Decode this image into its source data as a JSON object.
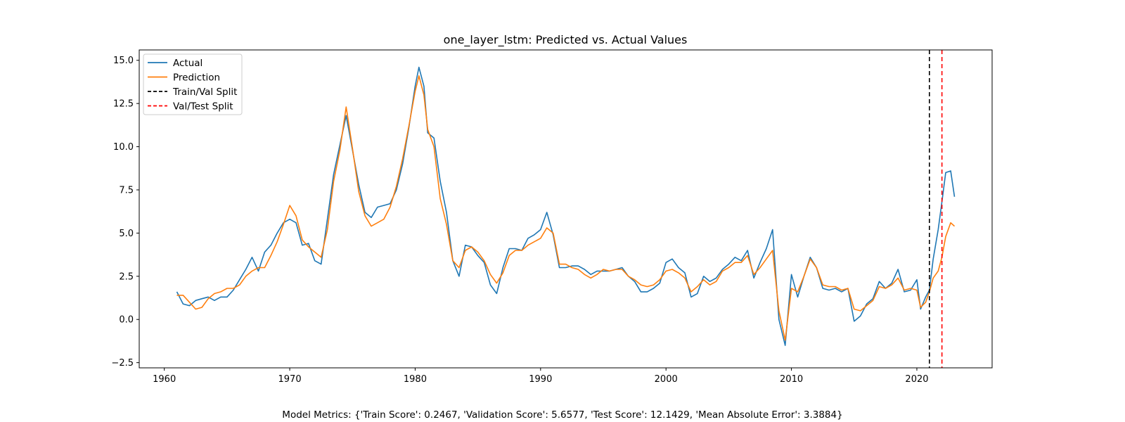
{
  "chart_data": {
    "type": "line",
    "title": "one_layer_lstm: Predicted vs. Actual Values",
    "xlabel": "",
    "ylabel": "",
    "xlim": [
      1958,
      2026
    ],
    "ylim": [
      -2.8,
      15.6
    ],
    "xticks": [
      1960,
      1970,
      1980,
      1990,
      2000,
      2010,
      2020
    ],
    "yticks": [
      -2.5,
      0.0,
      2.5,
      5.0,
      7.5,
      10.0,
      12.5,
      15.0
    ],
    "ytick_labels": [
      "−2.5",
      "0.0",
      "2.5",
      "5.0",
      "7.5",
      "10.0",
      "12.5",
      "15.0"
    ],
    "grid": false,
    "legend_position": "upper-left",
    "series": [
      {
        "name": "Actual",
        "color": "#1f77b4",
        "x": [
          1961.0,
          1961.5,
          1962.0,
          1962.5,
          1963.0,
          1963.5,
          1964.0,
          1964.5,
          1965.0,
          1965.5,
          1966.0,
          1966.5,
          1967.0,
          1967.5,
          1968.0,
          1968.5,
          1969.0,
          1969.5,
          1970.0,
          1970.5,
          1971.0,
          1971.5,
          1972.0,
          1972.5,
          1973.0,
          1973.5,
          1974.0,
          1974.5,
          1975.0,
          1975.5,
          1976.0,
          1976.5,
          1977.0,
          1977.5,
          1978.0,
          1978.5,
          1979.0,
          1979.5,
          1980.0,
          1980.3,
          1980.7,
          1981.0,
          1981.5,
          1982.0,
          1982.5,
          1983.0,
          1983.5,
          1984.0,
          1984.5,
          1985.0,
          1985.5,
          1986.0,
          1986.5,
          1987.0,
          1987.5,
          1988.0,
          1988.5,
          1989.0,
          1989.5,
          1990.0,
          1990.5,
          1991.0,
          1991.5,
          1992.0,
          1992.5,
          1993.0,
          1993.5,
          1994.0,
          1994.5,
          1995.0,
          1995.5,
          1996.0,
          1996.5,
          1997.0,
          1997.5,
          1998.0,
          1998.5,
          1999.0,
          1999.5,
          2000.0,
          2000.5,
          2001.0,
          2001.5,
          2002.0,
          2002.5,
          2003.0,
          2003.5,
          2004.0,
          2004.5,
          2005.0,
          2005.5,
          2006.0,
          2006.5,
          2007.0,
          2007.5,
          2008.0,
          2008.5,
          2009.0,
          2009.5,
          2010.0,
          2010.5,
          2011.0,
          2011.5,
          2012.0,
          2012.5,
          2013.0,
          2013.5,
          2014.0,
          2014.5,
          2015.0,
          2015.5,
          2016.0,
          2016.5,
          2017.0,
          2017.5,
          2018.0,
          2018.5,
          2019.0,
          2019.5,
          2020.0,
          2020.3,
          2020.7,
          2021.0,
          2021.3,
          2021.7,
          2022.0,
          2022.3,
          2022.7,
          2023.0
        ],
        "y": [
          1.6,
          0.9,
          0.8,
          1.1,
          1.2,
          1.3,
          1.1,
          1.3,
          1.3,
          1.7,
          2.3,
          2.9,
          3.6,
          2.8,
          3.9,
          4.3,
          5.0,
          5.6,
          5.8,
          5.6,
          4.3,
          4.4,
          3.4,
          3.2,
          5.8,
          8.4,
          10.1,
          11.8,
          9.8,
          7.8,
          6.2,
          5.9,
          6.5,
          6.6,
          6.7,
          7.5,
          9.0,
          11.1,
          13.5,
          14.6,
          13.5,
          10.8,
          10.5,
          8.0,
          6.2,
          3.4,
          2.5,
          4.3,
          4.2,
          3.7,
          3.3,
          2.0,
          1.5,
          3.0,
          4.1,
          4.1,
          4.0,
          4.7,
          4.9,
          5.2,
          6.2,
          4.9,
          3.0,
          3.0,
          3.1,
          3.1,
          2.9,
          2.6,
          2.8,
          2.8,
          2.8,
          2.9,
          3.0,
          2.5,
          2.2,
          1.6,
          1.6,
          1.8,
          2.1,
          3.3,
          3.5,
          3.0,
          2.7,
          1.3,
          1.5,
          2.5,
          2.2,
          2.4,
          2.9,
          3.2,
          3.6,
          3.4,
          4.0,
          2.4,
          3.3,
          4.1,
          5.2,
          0.0,
          -1.5,
          2.6,
          1.3,
          2.5,
          3.6,
          3.0,
          1.8,
          1.7,
          1.8,
          1.6,
          1.8,
          -0.1,
          0.2,
          0.9,
          1.2,
          2.2,
          1.8,
          2.1,
          2.9,
          1.6,
          1.7,
          2.3,
          0.6,
          1.3,
          1.7,
          3.5,
          5.2,
          6.8,
          8.5,
          8.6,
          7.1
        ]
      },
      {
        "name": "Prediction",
        "color": "#ff7f0e",
        "x": [
          1961.0,
          1961.5,
          1962.0,
          1962.5,
          1963.0,
          1963.5,
          1964.0,
          1964.5,
          1965.0,
          1965.5,
          1966.0,
          1966.5,
          1967.0,
          1967.5,
          1968.0,
          1968.5,
          1969.0,
          1969.5,
          1970.0,
          1970.5,
          1971.0,
          1971.5,
          1972.0,
          1972.5,
          1973.0,
          1973.5,
          1974.0,
          1974.5,
          1975.0,
          1975.5,
          1976.0,
          1976.5,
          1977.0,
          1977.5,
          1978.0,
          1978.5,
          1979.0,
          1979.5,
          1980.0,
          1980.3,
          1980.7,
          1981.0,
          1981.5,
          1982.0,
          1982.5,
          1983.0,
          1983.5,
          1984.0,
          1984.5,
          1985.0,
          1985.5,
          1986.0,
          1986.5,
          1987.0,
          1987.5,
          1988.0,
          1988.5,
          1989.0,
          1989.5,
          1990.0,
          1990.5,
          1991.0,
          1991.5,
          1992.0,
          1992.5,
          1993.0,
          1993.5,
          1994.0,
          1994.5,
          1995.0,
          1995.5,
          1996.0,
          1996.5,
          1997.0,
          1997.5,
          1998.0,
          1998.5,
          1999.0,
          1999.5,
          2000.0,
          2000.5,
          2001.0,
          2001.5,
          2002.0,
          2002.5,
          2003.0,
          2003.5,
          2004.0,
          2004.5,
          2005.0,
          2005.5,
          2006.0,
          2006.5,
          2007.0,
          2007.5,
          2008.0,
          2008.5,
          2009.0,
          2009.5,
          2010.0,
          2010.5,
          2011.0,
          2011.5,
          2012.0,
          2012.5,
          2013.0,
          2013.5,
          2014.0,
          2014.5,
          2015.0,
          2015.5,
          2016.0,
          2016.5,
          2017.0,
          2017.5,
          2018.0,
          2018.5,
          2019.0,
          2019.5,
          2020.0,
          2020.3,
          2020.7,
          2021.0,
          2021.3,
          2021.7,
          2022.0,
          2022.3,
          2022.7,
          2023.0
        ],
        "y": [
          1.4,
          1.4,
          1.0,
          0.6,
          0.7,
          1.2,
          1.5,
          1.6,
          1.8,
          1.8,
          2.0,
          2.5,
          2.8,
          3.0,
          3.0,
          3.7,
          4.5,
          5.5,
          6.6,
          6.0,
          4.6,
          4.2,
          3.9,
          3.6,
          5.2,
          8.0,
          9.8,
          12.3,
          9.9,
          7.4,
          6.0,
          5.4,
          5.6,
          5.8,
          6.5,
          7.7,
          9.3,
          11.2,
          13.2,
          14.1,
          13.0,
          11.0,
          10.0,
          7.0,
          5.5,
          3.4,
          3.0,
          4.0,
          4.2,
          3.9,
          3.4,
          2.6,
          2.1,
          2.7,
          3.7,
          4.0,
          4.0,
          4.3,
          4.5,
          4.7,
          5.3,
          5.0,
          3.2,
          3.2,
          3.0,
          2.9,
          2.6,
          2.4,
          2.6,
          2.9,
          2.8,
          2.9,
          2.9,
          2.5,
          2.3,
          2.0,
          1.9,
          2.0,
          2.3,
          2.8,
          2.9,
          2.7,
          2.4,
          1.6,
          1.9,
          2.3,
          2.0,
          2.2,
          2.8,
          3.0,
          3.3,
          3.3,
          3.7,
          2.6,
          3.0,
          3.5,
          4.0,
          0.5,
          -1.2,
          1.8,
          1.6,
          2.5,
          3.5,
          3.0,
          2.0,
          1.9,
          1.9,
          1.7,
          1.8,
          0.6,
          0.5,
          0.8,
          1.1,
          1.9,
          1.8,
          2.0,
          2.4,
          1.7,
          1.8,
          1.7,
          0.7,
          1.0,
          1.6,
          2.4,
          2.8,
          3.6,
          4.8,
          5.6,
          5.4
        ]
      }
    ],
    "vlines": [
      {
        "name": "Train/Val Split",
        "x": 2021.0,
        "color": "#000000"
      },
      {
        "name": "Val/Test Split",
        "x": 2022.0,
        "color": "#ff0000"
      }
    ],
    "legend": [
      "Actual",
      "Prediction",
      "Train/Val Split",
      "Val/Test Split"
    ]
  },
  "metrics_text": "Model Metrics: {'Train Score': 0.2467, 'Validation Score': 5.6577, 'Test Score': 12.1429, 'Mean Absolute Error': 3.3884}"
}
